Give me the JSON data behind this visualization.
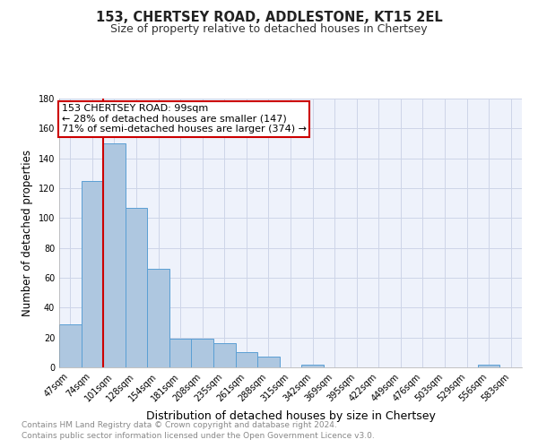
{
  "title": "153, CHERTSEY ROAD, ADDLESTONE, KT15 2EL",
  "subtitle": "Size of property relative to detached houses in Chertsey",
  "xlabel": "Distribution of detached houses by size in Chertsey",
  "ylabel": "Number of detached properties",
  "bar_color": "#aec7e0",
  "bar_edge_color": "#5a9fd4",
  "categories": [
    "47sqm",
    "74sqm",
    "101sqm",
    "128sqm",
    "154sqm",
    "181sqm",
    "208sqm",
    "235sqm",
    "261sqm",
    "288sqm",
    "315sqm",
    "342sqm",
    "369sqm",
    "395sqm",
    "422sqm",
    "449sqm",
    "476sqm",
    "503sqm",
    "529sqm",
    "556sqm",
    "583sqm"
  ],
  "values": [
    29,
    125,
    150,
    107,
    66,
    19,
    19,
    16,
    10,
    7,
    0,
    2,
    0,
    0,
    0,
    0,
    0,
    0,
    0,
    2,
    0
  ],
  "ylim": [
    0,
    180
  ],
  "yticks": [
    0,
    20,
    40,
    60,
    80,
    100,
    120,
    140,
    160,
    180
  ],
  "red_line_index": 2,
  "annotation_text": "153 CHERTSEY ROAD: 99sqm\n← 28% of detached houses are smaller (147)\n71% of semi-detached houses are larger (374) →",
  "annotation_box_color": "#ffffff",
  "annotation_edge_color": "#cc0000",
  "red_line_color": "#cc0000",
  "grid_color": "#cdd5e8",
  "background_color": "#eef2fb",
  "footer_line1": "Contains HM Land Registry data © Crown copyright and database right 2024.",
  "footer_line2": "Contains public sector information licensed under the Open Government Licence v3.0.",
  "title_fontsize": 10.5,
  "subtitle_fontsize": 9,
  "xlabel_fontsize": 9,
  "ylabel_fontsize": 8.5,
  "tick_fontsize": 7,
  "footer_fontsize": 6.5,
  "annotation_fontsize": 8
}
